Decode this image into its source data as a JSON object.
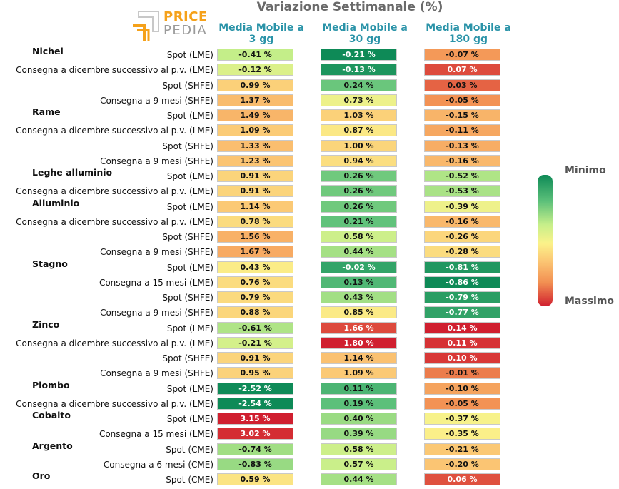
{
  "header": {
    "logo_word1": "PRICE",
    "logo_word2": "PEDIA",
    "title": "Variazione Settimanale (%)"
  },
  "legend": {
    "min_label": "Minimo",
    "max_label": "Massimo"
  },
  "chart_data": {
    "type": "heatmap",
    "title": "Variazione Settimanale (%)",
    "columns": [
      "Media Mobile a 3 gg",
      "Media Mobile a 30 gg",
      "Media Mobile a 180 gg"
    ],
    "color_scale": {
      "min_color": "#0e8a57",
      "mid_color": "#fbf28a",
      "max_color": "#d01f2f"
    },
    "rows": [
      {
        "group": "Nichel",
        "label": "Spot (LME)",
        "values": [
          "-0.41 %",
          "-0.21 %",
          "-0.07 %"
        ]
      },
      {
        "group": "",
        "label": "Consegna a dicembre successivo al p.v. (LME)",
        "values": [
          "-0.12 %",
          "-0.13 %",
          "0.07 %"
        ]
      },
      {
        "group": "",
        "label": "Spot (SHFE)",
        "values": [
          "0.99 %",
          "0.24 %",
          "0.03 %"
        ]
      },
      {
        "group": "",
        "label": "Consegna a 9 mesi (SHFE)",
        "values": [
          "1.37 %",
          "0.73 %",
          "-0.05 %"
        ]
      },
      {
        "group": "Rame",
        "label": "Spot (LME)",
        "values": [
          "1.49 %",
          "1.03 %",
          "-0.15 %"
        ]
      },
      {
        "group": "",
        "label": "Consegna a dicembre successivo al p.v. (LME)",
        "values": [
          "1.09 %",
          "0.87 %",
          "-0.11 %"
        ]
      },
      {
        "group": "",
        "label": "Spot (SHFE)",
        "values": [
          "1.33 %",
          "1.00 %",
          "-0.13 %"
        ]
      },
      {
        "group": "",
        "label": "Consegna a 9 mesi (SHFE)",
        "values": [
          "1.23 %",
          "0.94 %",
          "-0.16 %"
        ]
      },
      {
        "group": "Leghe alluminio",
        "label": "Spot (LME)",
        "values": [
          "0.91 %",
          "0.26 %",
          "-0.52 %"
        ]
      },
      {
        "group": "",
        "label": "Consegna a dicembre successivo al p.v. (LME)",
        "values": [
          "0.91 %",
          "0.26 %",
          "-0.53 %"
        ]
      },
      {
        "group": "Alluminio",
        "label": "Spot (LME)",
        "values": [
          "1.14 %",
          "0.26 %",
          "-0.39 %"
        ]
      },
      {
        "group": "",
        "label": "Consegna a dicembre successivo al p.v. (LME)",
        "values": [
          "0.78 %",
          "0.21 %",
          "-0.16 %"
        ]
      },
      {
        "group": "",
        "label": "Spot (SHFE)",
        "values": [
          "1.56 %",
          "0.58 %",
          "-0.26 %"
        ]
      },
      {
        "group": "",
        "label": "Consegna a 9 mesi (SHFE)",
        "values": [
          "1.67 %",
          "0.44 %",
          "-0.28 %"
        ]
      },
      {
        "group": "Stagno",
        "label": "Spot (LME)",
        "values": [
          "0.43 %",
          "-0.02 %",
          "-0.81 %"
        ]
      },
      {
        "group": "",
        "label": "Consegna a 15 mesi (LME)",
        "values": [
          "0.76 %",
          "0.13 %",
          "-0.86 %"
        ]
      },
      {
        "group": "",
        "label": "Spot (SHFE)",
        "values": [
          "0.79 %",
          "0.43 %",
          "-0.79 %"
        ]
      },
      {
        "group": "",
        "label": "Consegna a 9 mesi (SHFE)",
        "values": [
          "0.88 %",
          "0.85 %",
          "-0.77 %"
        ]
      },
      {
        "group": "Zinco",
        "label": "Spot (LME)",
        "values": [
          "-0.61 %",
          "1.66 %",
          "0.14 %"
        ]
      },
      {
        "group": "",
        "label": "Consegna a dicembre successivo al p.v. (LME)",
        "values": [
          "-0.21 %",
          "1.80 %",
          "0.11 %"
        ]
      },
      {
        "group": "",
        "label": "Spot (SHFE)",
        "values": [
          "0.91 %",
          "1.14 %",
          "0.10 %"
        ]
      },
      {
        "group": "",
        "label": "Consegna a 9 mesi (SHFE)",
        "values": [
          "0.95 %",
          "1.09 %",
          "-0.01 %"
        ]
      },
      {
        "group": "Piombo",
        "label": "Spot (LME)",
        "values": [
          "-2.52 %",
          "0.11 %",
          "-0.10 %"
        ]
      },
      {
        "group": "",
        "label": "Consegna a dicembre successivo al p.v. (LME)",
        "values": [
          "-2.54 %",
          "0.19 %",
          "-0.05 %"
        ]
      },
      {
        "group": "Cobalto",
        "label": "Spot (LME)",
        "values": [
          "3.15 %",
          "0.40 %",
          "-0.37 %"
        ]
      },
      {
        "group": "",
        "label": "Consegna a 15 mesi (LME)",
        "values": [
          "3.02 %",
          "0.39 %",
          "-0.35 %"
        ]
      },
      {
        "group": "Argento",
        "label": "Spot (CME)",
        "values": [
          "-0.74 %",
          "0.58 %",
          "-0.21 %"
        ]
      },
      {
        "group": "",
        "label": "Consegna a 6 mesi (CME)",
        "values": [
          "-0.83 %",
          "0.57 %",
          "-0.20 %"
        ]
      },
      {
        "group": "Oro",
        "label": "Spot (CME)",
        "values": [
          "0.59 %",
          "0.44 %",
          "0.06 %"
        ]
      }
    ]
  }
}
